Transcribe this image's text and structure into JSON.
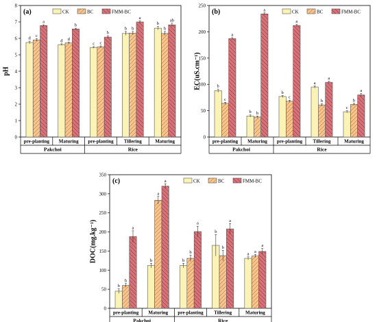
{
  "colors": {
    "CK": "#fbf3b5",
    "BC": "#f6c690",
    "FMM-BC": "#d8737a",
    "hatch_BC": "#c9783a",
    "hatch_FMM": "#8e3a42"
  },
  "chart_data": [
    {
      "type": "bar",
      "panel_label": "(a)",
      "ylabel": "pH",
      "ylim": [
        0,
        8
      ],
      "yticks": [
        "0",
        "1",
        "2",
        "3",
        "4",
        "5",
        "6",
        "7",
        "8"
      ],
      "legend": [
        "CK",
        "BC",
        "FMM-BC"
      ],
      "legend_position": "top-center",
      "categories": [
        "pre-planting",
        "Maturing",
        "pre-planting",
        "Tillering",
        "Maturing"
      ],
      "groups": [
        {
          "label": "Pakchoi",
          "span": 2
        },
        {
          "label": "Rice",
          "span": 3
        }
      ],
      "series": [
        {
          "name": "CK",
          "values": [
            5.75,
            5.62,
            5.45,
            6.3,
            6.62
          ],
          "errors": [
            0.08,
            0.05,
            0.05,
            0.12,
            0.1
          ],
          "labels": [
            "d",
            "d",
            "c",
            "b",
            "b"
          ]
        },
        {
          "name": "BC",
          "values": [
            5.9,
            5.72,
            5.48,
            6.32,
            6.3
          ],
          "errors": [
            0.08,
            0.05,
            0.06,
            0.1,
            0.12
          ],
          "labels": [
            "c",
            "d",
            "c",
            "b",
            "b"
          ]
        },
        {
          "name": "FMM-BC",
          "values": [
            6.78,
            6.57,
            6.08,
            7.0,
            6.82
          ],
          "errors": [
            0.05,
            0.05,
            0.08,
            0.06,
            0.1
          ],
          "labels": [
            "a",
            "b",
            "b",
            "a",
            "ab"
          ]
        }
      ]
    },
    {
      "type": "bar",
      "panel_label": "(b)",
      "ylabel": "EC(uS.cm⁻¹)",
      "ylim": [
        0,
        250
      ],
      "yticks": [
        "0",
        "50",
        "100",
        "150",
        "200",
        "250"
      ],
      "legend": [
        "CK",
        "BC",
        "FMM-BC"
      ],
      "legend_position": "top-right",
      "categories": [
        "pre-planting",
        "Maturing",
        "pre-planting",
        "Tillering",
        "Maturing"
      ],
      "groups": [
        {
          "label": "Pakchoi",
          "span": 2
        },
        {
          "label": "Rice",
          "span": 3
        }
      ],
      "series": [
        {
          "name": "CK",
          "values": [
            88,
            40,
            77,
            95,
            48
          ],
          "errors": [
            3,
            2,
            2,
            2,
            2
          ],
          "labels": [
            "b",
            "b",
            "b",
            "a",
            "c"
          ]
        },
        {
          "name": "BC",
          "values": [
            64,
            38,
            68,
            61,
            62
          ],
          "errors": [
            2,
            2,
            2,
            2,
            2
          ],
          "labels": [
            "c",
            "b",
            "c",
            "b",
            "b"
          ]
        },
        {
          "name": "FMM-BC",
          "values": [
            187,
            234,
            212,
            104,
            80
          ],
          "errors": [
            2,
            2,
            2,
            2,
            3
          ],
          "labels": [
            "a",
            "a",
            "a",
            "a",
            "a"
          ]
        }
      ]
    },
    {
      "type": "bar",
      "panel_label": "(c)",
      "ylabel": "DOC(mg.kg⁻¹)",
      "ylim": [
        0,
        350
      ],
      "yticks": [
        "0",
        "50",
        "100",
        "150",
        "200",
        "250",
        "300",
        "350"
      ],
      "legend": [
        "CK",
        "BC",
        "FMM-BC"
      ],
      "legend_position": "top-right",
      "categories": [
        "pre-planting",
        "Maturing",
        "pre-planting",
        "Tillering",
        "Maturing"
      ],
      "groups": [
        {
          "label": "Pakchoi",
          "span": 2
        },
        {
          "label": "Rice",
          "span": 3
        }
      ],
      "series": [
        {
          "name": "CK",
          "values": [
            45,
            112,
            112,
            165,
            131
          ],
          "errors": [
            6,
            6,
            6,
            28,
            4
          ],
          "labels": [
            "b",
            "b",
            "b",
            "b",
            "a"
          ]
        },
        {
          "name": "BC",
          "values": [
            60,
            283,
            131,
            138,
            137
          ],
          "errors": [
            5,
            10,
            8,
            14,
            4
          ],
          "labels": [
            "b",
            "a",
            "b",
            "b",
            "a"
          ]
        },
        {
          "name": "FMM-BC",
          "values": [
            188,
            320,
            201,
            208,
            149
          ],
          "errors": [
            15,
            6,
            14,
            14,
            8
          ],
          "labels": [
            "a",
            "a",
            "a",
            "a",
            "a"
          ]
        }
      ]
    }
  ]
}
